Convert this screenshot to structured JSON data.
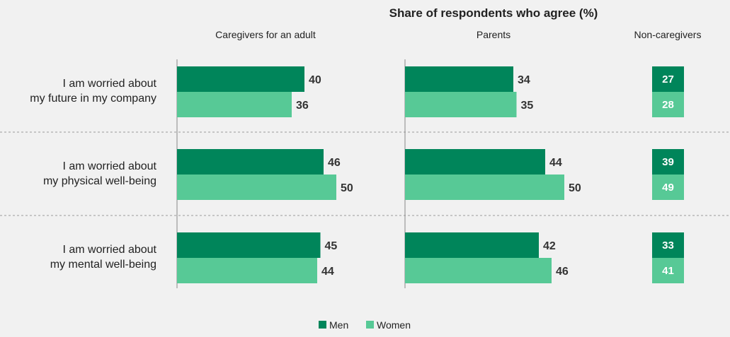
{
  "chart_data": {
    "type": "bar",
    "orientation": "horizontal",
    "title": "Share of respondents who agree (%)",
    "categories": [
      [
        "I am worried about",
        "my future in my company"
      ],
      [
        "I am worried about",
        "my physical well-being"
      ],
      [
        "I am worried about",
        "my mental well-being"
      ]
    ],
    "panels": [
      {
        "name": "Caregivers for an adult",
        "style": "bars",
        "series": [
          {
            "name": "Men",
            "values": [
              40,
              46,
              45
            ]
          },
          {
            "name": "Women",
            "values": [
              36,
              50,
              44
            ]
          }
        ]
      },
      {
        "name": "Parents",
        "style": "bars",
        "series": [
          {
            "name": "Men",
            "values": [
              34,
              44,
              42
            ]
          },
          {
            "name": "Women",
            "values": [
              35,
              50,
              46
            ]
          }
        ]
      },
      {
        "name": "Non-caregivers",
        "style": "value-boxes",
        "series": [
          {
            "name": "Men",
            "values": [
              27,
              39,
              33
            ]
          },
          {
            "name": "Women",
            "values": [
              28,
              49,
              41
            ]
          }
        ]
      }
    ],
    "legend": {
      "position": "bottom-center",
      "entries": [
        "Men",
        "Women"
      ]
    },
    "colors": {
      "Men": "#00855a",
      "Women": "#57c996"
    },
    "grid": false
  }
}
